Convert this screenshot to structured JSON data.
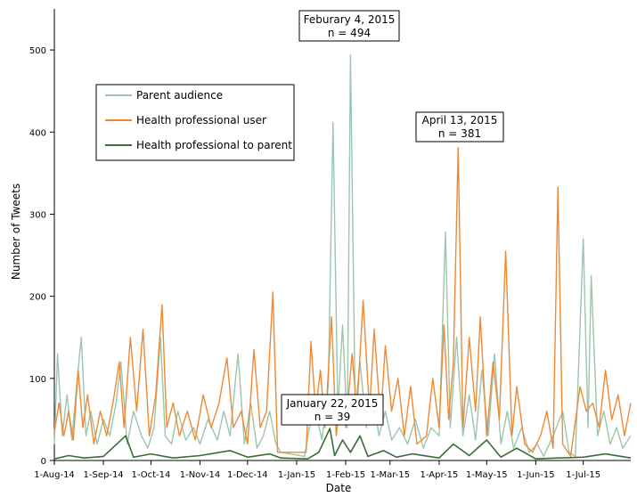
{
  "chart_data": {
    "type": "line",
    "xlabel": "Date",
    "ylabel": "Number of Tweets",
    "ylim": [
      0,
      550
    ],
    "y_ticks": [
      0,
      100,
      200,
      300,
      400,
      500
    ],
    "x_ticks": [
      {
        "label": "1-Aug-14",
        "date": "2014-08-01"
      },
      {
        "label": "1-Sep-14",
        "date": "2014-09-01"
      },
      {
        "label": "1-Oct-14",
        "date": "2014-10-01"
      },
      {
        "label": "1-Nov-14",
        "date": "2014-11-01"
      },
      {
        "label": "1-Dec-14",
        "date": "2014-12-01"
      },
      {
        "label": "1-Jan-15",
        "date": "2015-01-01"
      },
      {
        "label": "1-Feb-15",
        "date": "2015-02-01"
      },
      {
        "label": "1-Mar-15",
        "date": "2015-03-01"
      },
      {
        "label": "1-Apr-15",
        "date": "2015-04-01"
      },
      {
        "label": "1-May-15",
        "date": "2015-05-01"
      },
      {
        "label": "1-Jun-15",
        "date": "2015-06-01"
      },
      {
        "label": "1-Jul-15",
        "date": "2015-07-01"
      }
    ],
    "x_range": [
      "2014-08-01",
      "2015-07-31"
    ],
    "legend_position": "upper-left",
    "grid": false,
    "series": [
      {
        "name": "Parent audience",
        "color": "#9bc5ad",
        "points": [
          [
            "2014-08-01",
            20
          ],
          [
            "2014-08-03",
            130
          ],
          [
            "2014-08-06",
            30
          ],
          [
            "2014-08-09",
            80
          ],
          [
            "2014-08-12",
            25
          ],
          [
            "2014-08-15",
            90
          ],
          [
            "2014-08-18",
            150
          ],
          [
            "2014-08-21",
            30
          ],
          [
            "2014-08-24",
            60
          ],
          [
            "2014-08-28",
            20
          ],
          [
            "2014-09-01",
            50
          ],
          [
            "2014-09-05",
            30
          ],
          [
            "2014-09-09",
            70
          ],
          [
            "2014-09-12",
            120
          ],
          [
            "2014-09-16",
            20
          ],
          [
            "2014-09-20",
            60
          ],
          [
            "2014-09-25",
            30
          ],
          [
            "2014-09-29",
            15
          ],
          [
            "2014-10-03",
            40
          ],
          [
            "2014-10-07",
            150
          ],
          [
            "2014-10-10",
            30
          ],
          [
            "2014-10-14",
            20
          ],
          [
            "2014-10-18",
            60
          ],
          [
            "2014-10-23",
            25
          ],
          [
            "2014-10-28",
            40
          ],
          [
            "2014-11-01",
            20
          ],
          [
            "2014-11-06",
            50
          ],
          [
            "2014-11-12",
            25
          ],
          [
            "2014-11-16",
            60
          ],
          [
            "2014-11-20",
            30
          ],
          [
            "2014-11-25",
            130
          ],
          [
            "2014-11-29",
            20
          ],
          [
            "2014-12-03",
            70
          ],
          [
            "2014-12-07",
            15
          ],
          [
            "2014-12-11",
            30
          ],
          [
            "2014-12-15",
            60
          ],
          [
            "2014-12-19",
            20
          ],
          [
            "2014-12-22",
            10
          ],
          [
            "2015-01-06",
            5
          ],
          [
            "2015-01-09",
            40
          ],
          [
            "2015-01-13",
            60
          ],
          [
            "2015-01-17",
            25
          ],
          [
            "2015-01-21",
            90
          ],
          [
            "2015-01-24",
            412
          ],
          [
            "2015-01-27",
            60
          ],
          [
            "2015-01-30",
            165
          ],
          [
            "2015-02-02",
            40
          ],
          [
            "2015-02-04",
            494
          ],
          [
            "2015-02-07",
            60
          ],
          [
            "2015-02-10",
            120
          ],
          [
            "2015-02-14",
            40
          ],
          [
            "2015-02-18",
            80
          ],
          [
            "2015-02-22",
            30
          ],
          [
            "2015-02-26",
            60
          ],
          [
            "2015-03-02",
            25
          ],
          [
            "2015-03-07",
            40
          ],
          [
            "2015-03-12",
            20
          ],
          [
            "2015-03-17",
            50
          ],
          [
            "2015-03-22",
            15
          ],
          [
            "2015-03-27",
            40
          ],
          [
            "2015-04-01",
            30
          ],
          [
            "2015-04-05",
            278
          ],
          [
            "2015-04-08",
            40
          ],
          [
            "2015-04-12",
            150
          ],
          [
            "2015-04-16",
            30
          ],
          [
            "2015-04-20",
            80
          ],
          [
            "2015-04-24",
            25
          ],
          [
            "2015-04-28",
            110
          ],
          [
            "2015-05-02",
            30
          ],
          [
            "2015-05-06",
            130
          ],
          [
            "2015-05-10",
            20
          ],
          [
            "2015-05-14",
            60
          ],
          [
            "2015-05-18",
            15
          ],
          [
            "2015-05-23",
            40
          ],
          [
            "2015-05-28",
            10
          ],
          [
            "2015-06-02",
            20
          ],
          [
            "2015-06-06",
            5
          ],
          [
            "2015-06-12",
            30
          ],
          [
            "2015-06-18",
            60
          ],
          [
            "2015-06-22",
            10
          ],
          [
            "2015-06-26",
            5
          ],
          [
            "2015-07-01",
            270
          ],
          [
            "2015-07-04",
            40
          ],
          [
            "2015-07-06",
            225
          ],
          [
            "2015-07-10",
            30
          ],
          [
            "2015-07-14",
            60
          ],
          [
            "2015-07-18",
            20
          ],
          [
            "2015-07-22",
            40
          ],
          [
            "2015-07-26",
            15
          ],
          [
            "2015-07-31",
            30
          ]
        ]
      },
      {
        "name": "Health professional user",
        "color": "#ee8a35",
        "points": [
          [
            "2014-08-01",
            35
          ],
          [
            "2014-08-04",
            70
          ],
          [
            "2014-08-07",
            30
          ],
          [
            "2014-08-10",
            60
          ],
          [
            "2014-08-13",
            25
          ],
          [
            "2014-08-16",
            110
          ],
          [
            "2014-08-19",
            40
          ],
          [
            "2014-08-22",
            80
          ],
          [
            "2014-08-26",
            20
          ],
          [
            "2014-08-30",
            60
          ],
          [
            "2014-09-03",
            30
          ],
          [
            "2014-09-07",
            70
          ],
          [
            "2014-09-11",
            120
          ],
          [
            "2014-09-14",
            40
          ],
          [
            "2014-09-18",
            150
          ],
          [
            "2014-09-22",
            60
          ],
          [
            "2014-09-26",
            160
          ],
          [
            "2014-09-30",
            30
          ],
          [
            "2014-10-04",
            80
          ],
          [
            "2014-10-08",
            190
          ],
          [
            "2014-10-11",
            40
          ],
          [
            "2014-10-15",
            70
          ],
          [
            "2014-10-19",
            30
          ],
          [
            "2014-10-24",
            60
          ],
          [
            "2014-10-29",
            25
          ],
          [
            "2014-11-03",
            80
          ],
          [
            "2014-11-08",
            40
          ],
          [
            "2014-11-13",
            70
          ],
          [
            "2014-11-18",
            125
          ],
          [
            "2014-11-22",
            40
          ],
          [
            "2014-11-27",
            60
          ],
          [
            "2014-12-01",
            20
          ],
          [
            "2014-12-05",
            135
          ],
          [
            "2014-12-09",
            40
          ],
          [
            "2014-12-13",
            60
          ],
          [
            "2014-12-17",
            205
          ],
          [
            "2014-12-20",
            10
          ],
          [
            "2015-01-07",
            10
          ],
          [
            "2015-01-10",
            145
          ],
          [
            "2015-01-13",
            60
          ],
          [
            "2015-01-16",
            110
          ],
          [
            "2015-01-19",
            40
          ],
          [
            "2015-01-23",
            175
          ],
          [
            "2015-01-26",
            30
          ],
          [
            "2015-01-29",
            80
          ],
          [
            "2015-02-01",
            40
          ],
          [
            "2015-02-05",
            130
          ],
          [
            "2015-02-08",
            60
          ],
          [
            "2015-02-12",
            195
          ],
          [
            "2015-02-16",
            60
          ],
          [
            "2015-02-19",
            160
          ],
          [
            "2015-02-23",
            50
          ],
          [
            "2015-02-26",
            140
          ],
          [
            "2015-03-02",
            60
          ],
          [
            "2015-03-06",
            100
          ],
          [
            "2015-03-10",
            30
          ],
          [
            "2015-03-14",
            90
          ],
          [
            "2015-03-18",
            20
          ],
          [
            "2015-03-24",
            30
          ],
          [
            "2015-03-28",
            100
          ],
          [
            "2015-04-01",
            40
          ],
          [
            "2015-04-04",
            165
          ],
          [
            "2015-04-07",
            50
          ],
          [
            "2015-04-10",
            120
          ],
          [
            "2015-04-13",
            381
          ],
          [
            "2015-04-16",
            40
          ],
          [
            "2015-04-20",
            150
          ],
          [
            "2015-04-24",
            60
          ],
          [
            "2015-04-27",
            175
          ],
          [
            "2015-05-01",
            30
          ],
          [
            "2015-05-05",
            120
          ],
          [
            "2015-05-09",
            50
          ],
          [
            "2015-05-13",
            255
          ],
          [
            "2015-05-17",
            30
          ],
          [
            "2015-05-20",
            90
          ],
          [
            "2015-05-25",
            20
          ],
          [
            "2015-05-30",
            10
          ],
          [
            "2015-06-04",
            30
          ],
          [
            "2015-06-08",
            60
          ],
          [
            "2015-06-12",
            15
          ],
          [
            "2015-06-15",
            333
          ],
          [
            "2015-06-18",
            20
          ],
          [
            "2015-06-23",
            5
          ],
          [
            "2015-06-29",
            90
          ],
          [
            "2015-07-03",
            60
          ],
          [
            "2015-07-07",
            70
          ],
          [
            "2015-07-11",
            40
          ],
          [
            "2015-07-15",
            110
          ],
          [
            "2015-07-19",
            50
          ],
          [
            "2015-07-23",
            80
          ],
          [
            "2015-07-27",
            30
          ],
          [
            "2015-07-31",
            70
          ]
        ]
      },
      {
        "name": "Health professional to parent",
        "color": "#3b6b3b",
        "points": [
          [
            "2014-08-01",
            2
          ],
          [
            "2014-08-10",
            6
          ],
          [
            "2014-08-20",
            3
          ],
          [
            "2014-09-01",
            5
          ],
          [
            "2014-09-15",
            30
          ],
          [
            "2014-09-20",
            4
          ],
          [
            "2014-10-01",
            8
          ],
          [
            "2014-10-15",
            3
          ],
          [
            "2014-11-01",
            6
          ],
          [
            "2014-11-20",
            12
          ],
          [
            "2014-12-01",
            4
          ],
          [
            "2014-12-15",
            8
          ],
          [
            "2014-12-22",
            3
          ],
          [
            "2015-01-08",
            2
          ],
          [
            "2015-01-15",
            10
          ],
          [
            "2015-01-22",
            39
          ],
          [
            "2015-01-25",
            6
          ],
          [
            "2015-01-30",
            25
          ],
          [
            "2015-02-04",
            10
          ],
          [
            "2015-02-10",
            30
          ],
          [
            "2015-02-15",
            5
          ],
          [
            "2015-02-25",
            12
          ],
          [
            "2015-03-05",
            4
          ],
          [
            "2015-03-15",
            8
          ],
          [
            "2015-04-01",
            3
          ],
          [
            "2015-04-10",
            20
          ],
          [
            "2015-04-20",
            6
          ],
          [
            "2015-05-01",
            25
          ],
          [
            "2015-05-10",
            4
          ],
          [
            "2015-05-20",
            15
          ],
          [
            "2015-06-01",
            2
          ],
          [
            "2015-06-15",
            3
          ],
          [
            "2015-07-01",
            4
          ],
          [
            "2015-07-15",
            8
          ],
          [
            "2015-07-31",
            3
          ]
        ]
      }
    ],
    "annotations": [
      {
        "lines": [
          "Feburary 4, 2015",
          "n = 494"
        ]
      },
      {
        "lines": [
          "April 13, 2015",
          "n = 381"
        ]
      },
      {
        "lines": [
          "January 22, 2015",
          "n = 39"
        ]
      }
    ]
  }
}
